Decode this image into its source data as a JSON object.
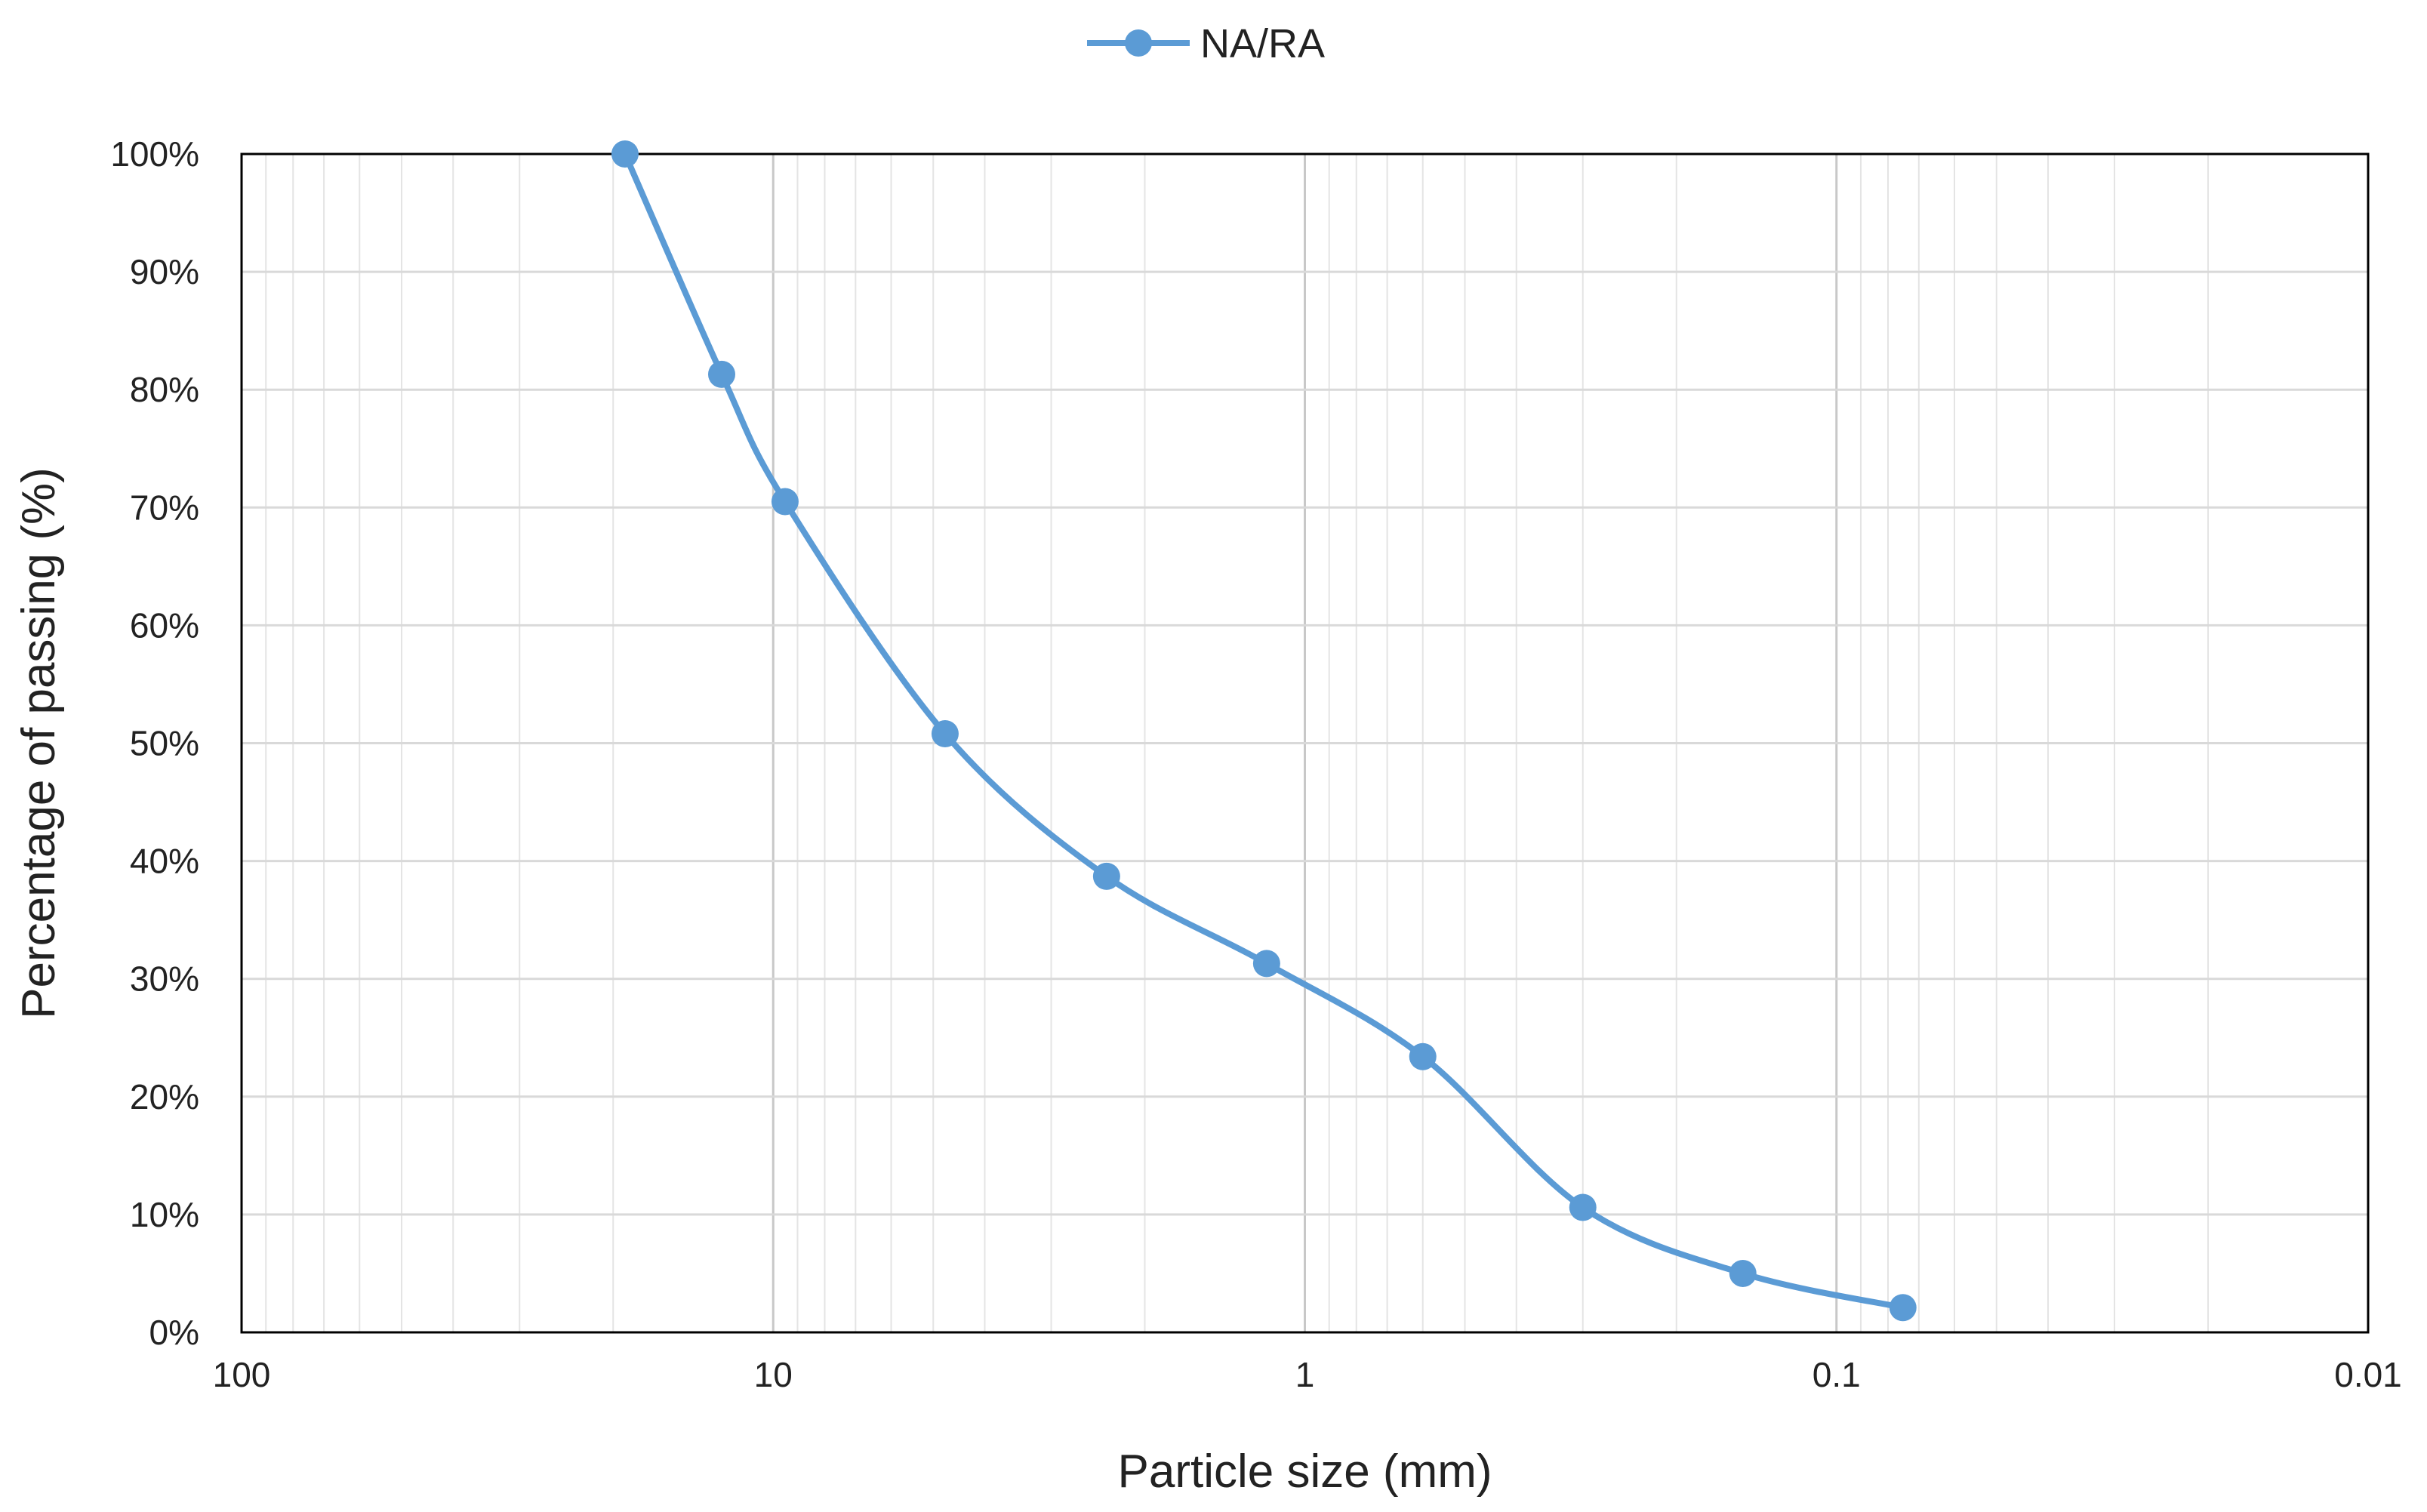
{
  "chart_data": {
    "type": "line",
    "title": "",
    "xlabel": "Particle size (mm)",
    "ylabel": "Percentage of passing (%)",
    "x_scale": "log",
    "x_reversed": true,
    "xlim": [
      100,
      0.01
    ],
    "ylim": [
      0,
      100
    ],
    "x_ticks": [
      100,
      10,
      1,
      0.1,
      0.01
    ],
    "x_tick_labels": [
      "100",
      "10",
      "1",
      "0.1",
      "0.01"
    ],
    "y_ticks": [
      0,
      10,
      20,
      30,
      40,
      50,
      60,
      70,
      80,
      90,
      100
    ],
    "y_tick_labels": [
      "0%",
      "10%",
      "20%",
      "30%",
      "40%",
      "50%",
      "60%",
      "70%",
      "80%",
      "90%",
      "100%"
    ],
    "grid": true,
    "smooth": true,
    "legend_position": "top-center",
    "series": [
      {
        "name": "NA/RA",
        "color": "#5b9bd5",
        "x": [
          19,
          12.5,
          9.5,
          4.75,
          2.36,
          1.18,
          0.6,
          0.3,
          0.15,
          0.075
        ],
        "y": [
          100,
          81.3,
          70.5,
          50.8,
          38.7,
          31.3,
          23.4,
          10.6,
          5.0,
          2.1
        ]
      }
    ]
  }
}
